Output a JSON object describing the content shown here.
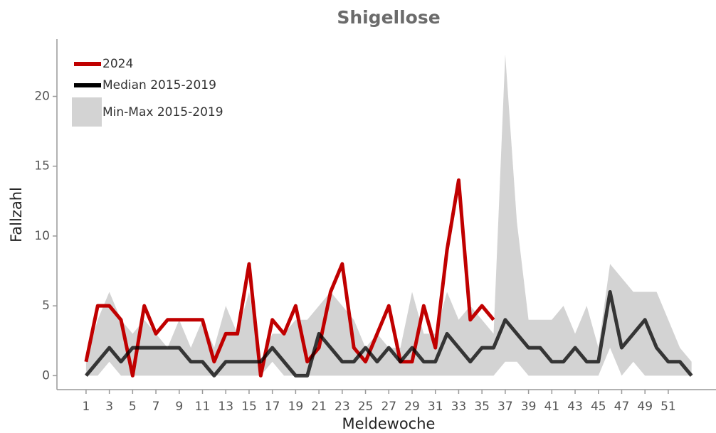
{
  "chart_data": {
    "type": "line",
    "title": "Shigellose",
    "x_label": "Meldewoche",
    "y_label": "Fallzahl",
    "x": [
      1,
      2,
      3,
      4,
      5,
      6,
      7,
      8,
      9,
      10,
      11,
      12,
      13,
      14,
      15,
      16,
      17,
      18,
      19,
      20,
      21,
      22,
      23,
      24,
      25,
      26,
      27,
      28,
      29,
      30,
      31,
      32,
      33,
      34,
      35,
      36,
      37,
      38,
      39,
      40,
      41,
      42,
      43,
      44,
      45,
      46,
      47,
      48,
      49,
      50,
      51,
      52,
      53
    ],
    "band": {
      "name": "Min-Max 2015-2019",
      "color": "#d3d3d3",
      "lower": [
        0,
        0,
        1,
        0,
        0,
        0,
        0,
        0,
        0,
        0,
        0,
        0,
        0,
        0,
        0,
        0,
        1,
        0,
        0,
        0,
        0,
        0,
        0,
        0,
        0,
        0,
        0,
        0,
        0,
        0,
        0,
        0,
        0,
        0,
        0,
        0,
        1,
        1,
        0,
        0,
        0,
        0,
        0,
        0,
        0,
        2,
        0,
        1,
        0,
        0,
        0,
        0,
        0
      ],
      "upper": [
        1,
        4,
        6,
        4,
        3,
        4,
        3,
        2,
        4,
        2,
        4,
        2,
        5,
        3,
        6,
        1,
        3,
        3,
        4,
        4,
        5,
        6,
        5,
        4,
        2,
        3,
        2,
        2,
        6,
        3,
        3,
        6,
        4,
        5,
        4,
        3,
        23,
        11,
        4,
        4,
        4,
        5,
        3,
        5,
        2,
        8,
        7,
        6,
        6,
        6,
        4,
        2,
        1
      ]
    },
    "series": [
      {
        "name": "2024",
        "color": "#c00000",
        "values": [
          1,
          5,
          5,
          4,
          0,
          5,
          3,
          4,
          4,
          4,
          4,
          1,
          3,
          3,
          8,
          0,
          4,
          3,
          5,
          1,
          2,
          6,
          8,
          2,
          1,
          3,
          5,
          1,
          1,
          5,
          2,
          9,
          14,
          4,
          5,
          4,
          null,
          null,
          null,
          null,
          null,
          null,
          null,
          null,
          null,
          null,
          null,
          null,
          null,
          null,
          null,
          null,
          null
        ]
      },
      {
        "name": "Median 2015-2019",
        "color": "#000000",
        "values": [
          0,
          1,
          2,
          1,
          2,
          2,
          2,
          2,
          2,
          1,
          1,
          0,
          1,
          1,
          1,
          1,
          2,
          1,
          0,
          0,
          3,
          2,
          1,
          1,
          2,
          1,
          2,
          1,
          2,
          1,
          1,
          3,
          2,
          1,
          2,
          2,
          4,
          3,
          2,
          2,
          1,
          1,
          2,
          1,
          1,
          6,
          2,
          3,
          4,
          2,
          1,
          1,
          0
        ]
      }
    ],
    "xlim": [
      -1.5,
      55.1
    ],
    "ylim": [
      -1,
      24.1
    ],
    "xticks": [
      1,
      3,
      5,
      7,
      9,
      11,
      13,
      15,
      17,
      19,
      21,
      23,
      25,
      27,
      29,
      31,
      33,
      35,
      37,
      39,
      41,
      43,
      45,
      47,
      49,
      51
    ],
    "yticks": [
      0,
      5,
      10,
      15,
      20
    ],
    "legend": "top-left"
  }
}
